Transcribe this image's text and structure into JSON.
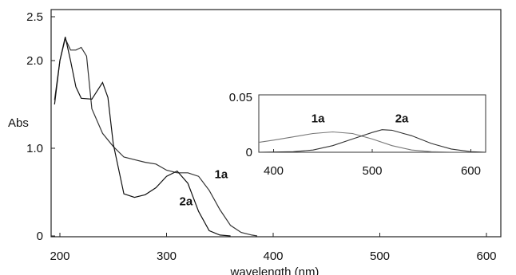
{
  "chart_data": [
    {
      "type": "line",
      "xlabel": "wavelength (nm)",
      "ylabel": "Abs",
      "xlim": [
        200,
        600
      ],
      "ylim": [
        0,
        2.5
      ],
      "x_ticks": [
        200,
        300,
        400,
        500,
        600
      ],
      "y_ticks": [
        "0",
        "1.0",
        "2.0",
        "2.5"
      ],
      "grid": false,
      "series": [
        {
          "name": "1a",
          "x": [
            195,
            200,
            205,
            210,
            215,
            220,
            225,
            230,
            240,
            250,
            260,
            270,
            280,
            290,
            300,
            310,
            320,
            330,
            340,
            350,
            360,
            370,
            380,
            385
          ],
          "y": [
            1.55,
            2.0,
            2.25,
            2.12,
            2.12,
            2.15,
            2.05,
            1.45,
            1.17,
            1.02,
            0.9,
            0.87,
            0.84,
            0.82,
            0.75,
            0.72,
            0.72,
            0.68,
            0.52,
            0.3,
            0.12,
            0.04,
            0.01,
            0.0
          ]
        },
        {
          "name": "2a",
          "x": [
            195,
            200,
            205,
            210,
            215,
            220,
            230,
            240,
            245,
            250,
            260,
            270,
            280,
            290,
            300,
            310,
            320,
            330,
            340,
            350,
            360
          ],
          "y": [
            1.5,
            2.0,
            2.27,
            2.0,
            1.7,
            1.57,
            1.56,
            1.75,
            1.58,
            1.05,
            0.48,
            0.44,
            0.47,
            0.55,
            0.68,
            0.74,
            0.6,
            0.28,
            0.06,
            0.01,
            0.0
          ]
        }
      ],
      "annotations": [
        {
          "text": "1a",
          "x": 345,
          "y": 0.66
        },
        {
          "text": "2a",
          "x": 312,
          "y": 0.35
        }
      ]
    },
    {
      "type": "line",
      "inset": true,
      "xlim": [
        385,
        615
      ],
      "ylim": [
        0,
        0.05
      ],
      "x_ticks": [
        400,
        500,
        600
      ],
      "y_ticks": [
        "0",
        "0.05"
      ],
      "series": [
        {
          "name": "1a",
          "x": [
            385,
            400,
            420,
            440,
            460,
            480,
            500,
            520,
            540,
            560,
            580,
            600,
            615
          ],
          "y": [
            0.009,
            0.011,
            0.014,
            0.017,
            0.0185,
            0.017,
            0.012,
            0.006,
            0.002,
            0.0005,
            0.0001,
            0.0,
            0.0
          ]
        },
        {
          "name": "2a",
          "x": [
            385,
            420,
            440,
            460,
            480,
            500,
            510,
            520,
            540,
            560,
            580,
            600,
            615
          ],
          "y": [
            0.0,
            0.0005,
            0.002,
            0.006,
            0.012,
            0.018,
            0.0205,
            0.02,
            0.015,
            0.008,
            0.003,
            0.0005,
            0.0
          ]
        }
      ],
      "annotations": [
        {
          "text": "1a",
          "x": 445,
          "y": 0.027
        },
        {
          "text": "2a",
          "x": 530,
          "y": 0.027
        }
      ]
    }
  ]
}
